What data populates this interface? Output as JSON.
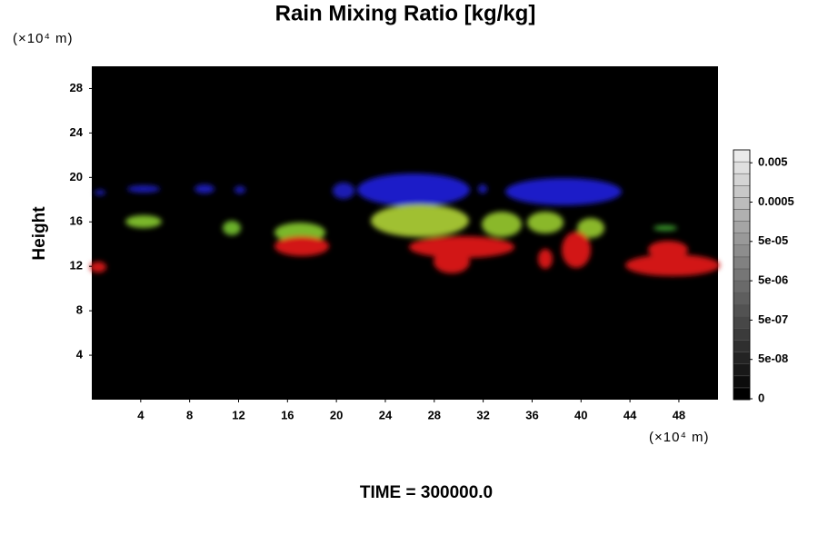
{
  "chart_data": {
    "type": "field",
    "title": "Rain Mixing Ratio [kg/kg]",
    "y_unit": "(×10⁴ m)",
    "x_unit": "(×10⁴ m)",
    "y_label": "Height",
    "xlim": [
      0,
      51.2
    ],
    "xticks": [
      4,
      8,
      12,
      16,
      20,
      24,
      28,
      32,
      36,
      40,
      44,
      48
    ],
    "ylim": [
      0,
      30
    ],
    "yticks": [
      4,
      8,
      12,
      16,
      20,
      24,
      28
    ],
    "colorbar_ticks": [
      0,
      {
        "value": 5e-08,
        "label": "5e-08"
      },
      {
        "value": 5e-07,
        "label": "5e-07"
      },
      {
        "value": 5e-06,
        "label": "5e-06"
      },
      {
        "value": 5e-05,
        "label": "5e-05"
      },
      0.0005,
      0.005
    ],
    "footer": "TIME = 300000.0"
  }
}
